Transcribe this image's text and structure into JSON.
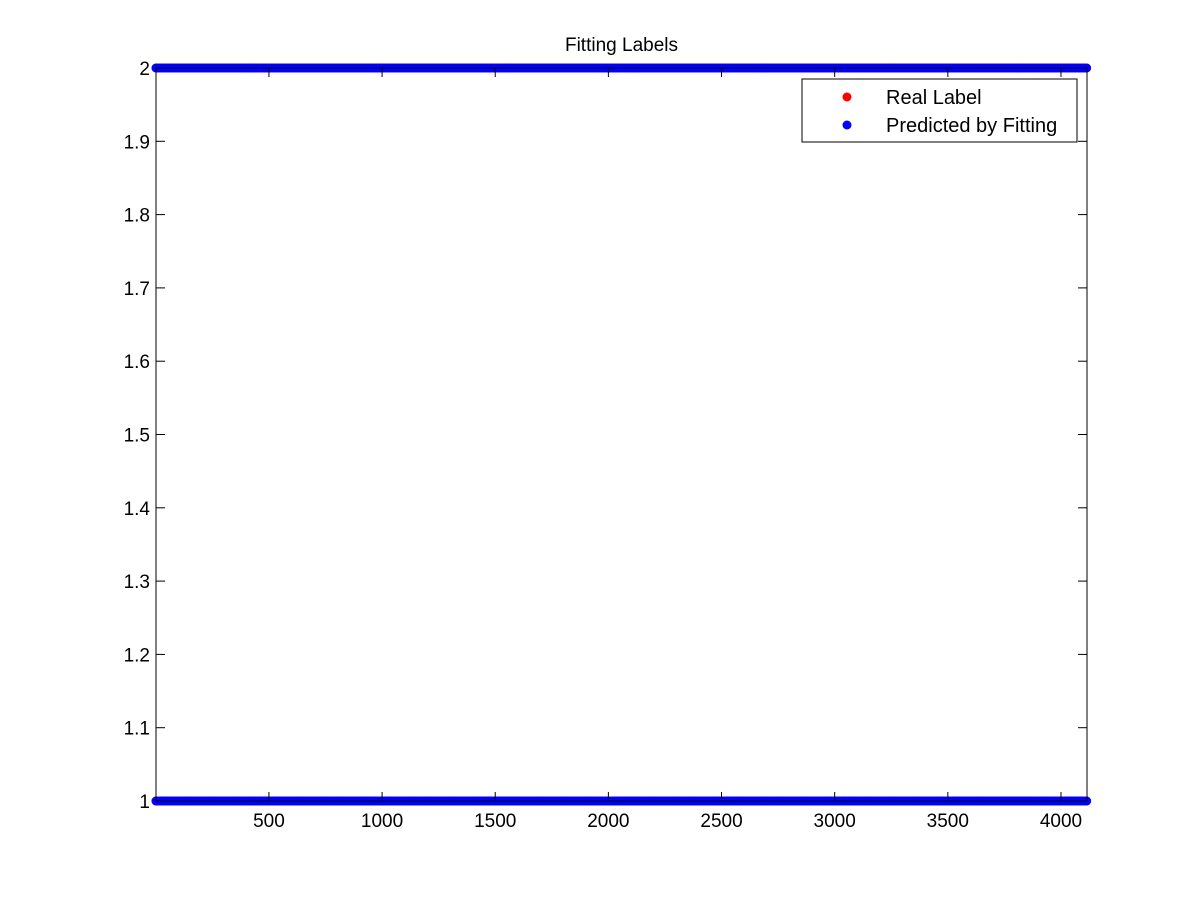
{
  "chart_data": {
    "type": "scatter",
    "title": "Fitting Labels",
    "xlabel": "",
    "ylabel": "",
    "xlim": [
      1,
      4115
    ],
    "ylim": [
      1,
      2
    ],
    "x_ticks": [
      500,
      1000,
      1500,
      2000,
      2500,
      3000,
      3500,
      4000
    ],
    "y_ticks": [
      1,
      1.1,
      1.2,
      1.3,
      1.4,
      1.5,
      1.6,
      1.7,
      1.8,
      1.9,
      2
    ],
    "x_tick_labels": [
      "500",
      "1000",
      "1500",
      "2000",
      "2500",
      "3000",
      "3500",
      "4000"
    ],
    "y_tick_labels": [
      "1",
      "1.1",
      "1.2",
      "1.3",
      "1.4",
      "1.5",
      "1.6",
      "1.7",
      "1.8",
      "1.9",
      "2"
    ],
    "grid": false,
    "legend_position": "top-right",
    "series": [
      {
        "name": "Real Label",
        "color": "#ff0000",
        "marker": "filled-circle",
        "x_range": [
          1,
          4115
        ],
        "values_present": [
          1,
          2
        ]
      },
      {
        "name": "Predicted by Fitting",
        "color": "#0000ff",
        "marker": "filled-circle",
        "x_range": [
          1,
          4115
        ],
        "values_present": [
          1,
          2
        ]
      }
    ]
  }
}
